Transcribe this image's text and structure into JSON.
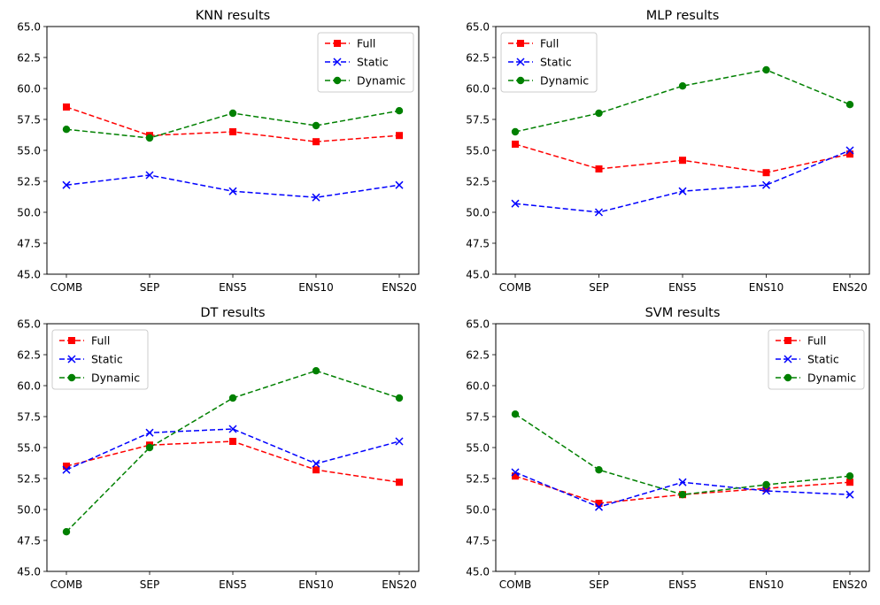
{
  "chart_data": [
    {
      "type": "line",
      "title": "KNN results",
      "categories": [
        "COMB",
        "SEP",
        "ENS5",
        "ENS10",
        "ENS20"
      ],
      "ylim": [
        45.0,
        65.0
      ],
      "yticks": [
        "45.0",
        "47.5",
        "50.0",
        "52.5",
        "55.0",
        "57.5",
        "60.0",
        "62.5",
        "65.0"
      ],
      "legend_position": "top-right",
      "grid": false,
      "series": [
        {
          "name": "Full",
          "color": "#ff0000",
          "marker": "square",
          "values": [
            58.5,
            56.2,
            56.5,
            55.7,
            56.2
          ]
        },
        {
          "name": "Static",
          "color": "#0000ff",
          "marker": "x",
          "values": [
            52.2,
            53.0,
            51.7,
            51.2,
            52.2
          ]
        },
        {
          "name": "Dynamic",
          "color": "#008000",
          "marker": "circle",
          "values": [
            56.7,
            56.0,
            58.0,
            57.0,
            58.2
          ]
        }
      ]
    },
    {
      "type": "line",
      "title": "MLP results",
      "categories": [
        "COMB",
        "SEP",
        "ENS5",
        "ENS10",
        "ENS20"
      ],
      "ylim": [
        45.0,
        65.0
      ],
      "yticks": [
        "45.0",
        "47.5",
        "50.0",
        "52.5",
        "55.0",
        "57.5",
        "60.0",
        "62.5",
        "65.0"
      ],
      "legend_position": "top-left",
      "grid": false,
      "series": [
        {
          "name": "Full",
          "color": "#ff0000",
          "marker": "square",
          "values": [
            55.5,
            53.5,
            54.2,
            53.2,
            54.7
          ]
        },
        {
          "name": "Static",
          "color": "#0000ff",
          "marker": "x",
          "values": [
            50.7,
            50.0,
            51.7,
            52.2,
            55.0
          ]
        },
        {
          "name": "Dynamic",
          "color": "#008000",
          "marker": "circle",
          "values": [
            56.5,
            58.0,
            60.2,
            61.5,
            58.7
          ]
        }
      ]
    },
    {
      "type": "line",
      "title": "DT results",
      "categories": [
        "COMB",
        "SEP",
        "ENS5",
        "ENS10",
        "ENS20"
      ],
      "ylim": [
        45.0,
        65.0
      ],
      "yticks": [
        "45.0",
        "47.5",
        "50.0",
        "52.5",
        "55.0",
        "57.5",
        "60.0",
        "62.5",
        "65.0"
      ],
      "legend_position": "top-left",
      "grid": false,
      "series": [
        {
          "name": "Full",
          "color": "#ff0000",
          "marker": "square",
          "values": [
            53.5,
            55.2,
            55.5,
            53.2,
            52.2
          ]
        },
        {
          "name": "Static",
          "color": "#0000ff",
          "marker": "x",
          "values": [
            53.2,
            56.2,
            56.5,
            53.7,
            55.5
          ]
        },
        {
          "name": "Dynamic",
          "color": "#008000",
          "marker": "circle",
          "values": [
            48.2,
            55.0,
            59.0,
            61.2,
            59.0
          ]
        }
      ]
    },
    {
      "type": "line",
      "title": "SVM results",
      "categories": [
        "COMB",
        "SEP",
        "ENS5",
        "ENS10",
        "ENS20"
      ],
      "ylim": [
        45.0,
        65.0
      ],
      "yticks": [
        "45.0",
        "47.5",
        "50.0",
        "52.5",
        "55.0",
        "57.5",
        "60.0",
        "62.5",
        "65.0"
      ],
      "legend_position": "top-right",
      "grid": false,
      "series": [
        {
          "name": "Full",
          "color": "#ff0000",
          "marker": "square",
          "values": [
            52.7,
            50.5,
            51.2,
            51.7,
            52.2
          ]
        },
        {
          "name": "Static",
          "color": "#0000ff",
          "marker": "x",
          "values": [
            53.0,
            50.2,
            52.2,
            51.5,
            51.2
          ]
        },
        {
          "name": "Dynamic",
          "color": "#008000",
          "marker": "circle",
          "values": [
            57.7,
            53.2,
            51.2,
            52.0,
            52.7
          ]
        }
      ]
    }
  ]
}
